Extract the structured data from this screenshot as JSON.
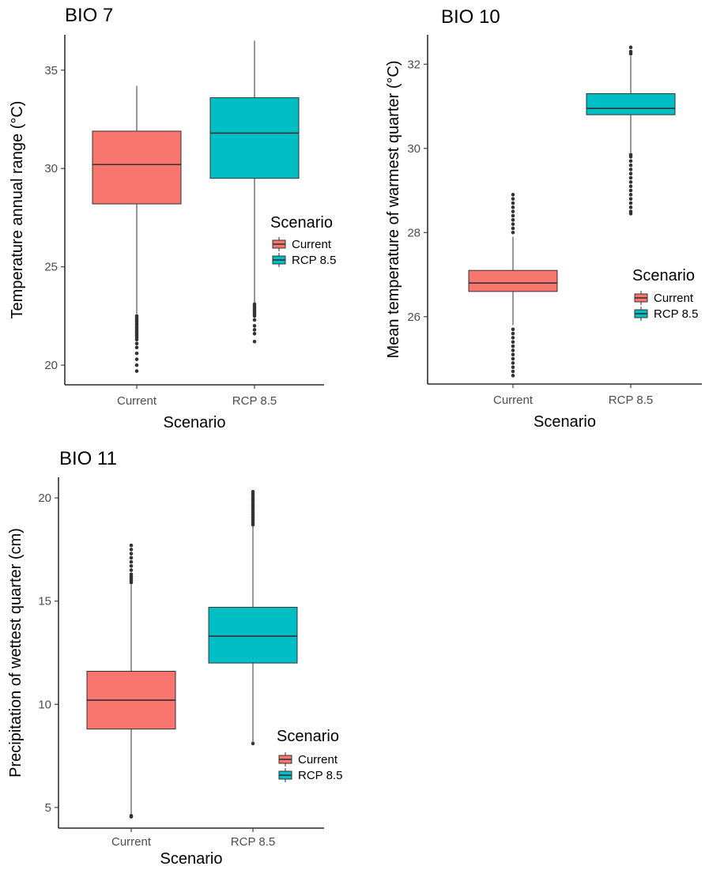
{
  "chart_data": [
    {
      "type": "boxplot",
      "title": "BIO 7",
      "xlabel": "Scenario",
      "ylabel": "Temperature annual range (°C)",
      "ylim": [
        19.0,
        36.8
      ],
      "yticks": [
        "20",
        "25",
        "30",
        "35"
      ],
      "categories": [
        "Current",
        "RCP 8.5"
      ],
      "legend": {
        "title": "Scenario",
        "labels": [
          "Current",
          "RCP 8.5"
        ],
        "position": "right"
      },
      "boxes": [
        {
          "category": "Current",
          "fill": "#F8766D",
          "whisker_low": 22.6,
          "q1": 28.2,
          "median": 30.2,
          "q3": 31.9,
          "whisker_high": 34.2,
          "outliers": [
            22.5,
            22.4,
            22.3,
            22.2,
            22.1,
            22.0,
            21.9,
            21.8,
            21.7,
            21.6,
            21.5,
            21.4,
            21.3,
            21.1,
            20.9,
            20.6,
            20.3,
            20.0,
            19.7
          ]
        },
        {
          "category": "RCP 8.5",
          "fill": "#00BFC4",
          "whisker_low": 23.1,
          "q1": 29.5,
          "median": 31.8,
          "q3": 33.6,
          "whisker_high": 36.5,
          "outliers": [
            23.1,
            23.0,
            22.9,
            22.8,
            22.7,
            22.6,
            22.5,
            22.3,
            22.0,
            21.8,
            21.6,
            21.2
          ]
        }
      ]
    },
    {
      "type": "boxplot",
      "title": "BIO 10",
      "xlabel": "Scenario",
      "ylabel": "Mean temperature of warmest quarter (°C)",
      "ylim": [
        24.4,
        32.7
      ],
      "yticks": [
        "26",
        "28",
        "30",
        "32"
      ],
      "categories": [
        "Current",
        "RCP 8.5"
      ],
      "legend": {
        "title": "Scenario",
        "labels": [
          "Current",
          "RCP 8.5"
        ],
        "position": "right"
      },
      "boxes": [
        {
          "category": "Current",
          "fill": "#F8766D",
          "whisker_low": 25.8,
          "q1": 26.6,
          "median": 26.8,
          "q3": 27.1,
          "whisker_high": 27.9,
          "outliers": [
            28.0,
            28.1,
            28.2,
            28.3,
            28.4,
            28.5,
            28.6,
            28.7,
            28.8,
            28.9,
            25.7,
            25.6,
            25.5,
            25.4,
            25.3,
            25.2,
            25.1,
            25.0,
            24.9,
            24.8,
            24.7,
            24.6
          ]
        },
        {
          "category": "RCP 8.5",
          "fill": "#00BFC4",
          "whisker_low": 29.9,
          "q1": 30.8,
          "median": 30.95,
          "q3": 31.3,
          "whisker_high": 32.2,
          "outliers": [
            32.25,
            32.3,
            32.4,
            29.85,
            29.8,
            29.7,
            29.6,
            29.5,
            29.4,
            29.3,
            29.2,
            29.1,
            29.0,
            28.9,
            28.8,
            28.7,
            28.6,
            28.5,
            28.45
          ]
        }
      ]
    },
    {
      "type": "boxplot",
      "title": "BIO 11",
      "xlabel": "Scenario",
      "ylabel": "Precipitation of wettest quarter (cm)",
      "ylim": [
        4.0,
        21.0
      ],
      "yticks": [
        "5",
        "10",
        "15",
        "20"
      ],
      "categories": [
        "Current",
        "RCP 8.5"
      ],
      "legend": {
        "title": "Scenario",
        "labels": [
          "Current",
          "RCP 8.5"
        ],
        "position": "right"
      },
      "boxes": [
        {
          "category": "Current",
          "fill": "#F8766D",
          "whisker_low": 4.7,
          "q1": 8.8,
          "median": 10.2,
          "q3": 11.6,
          "whisker_high": 15.8,
          "outliers": [
            15.9,
            16.0,
            16.1,
            16.2,
            16.3,
            16.5,
            16.7,
            16.9,
            17.1,
            17.3,
            17.5,
            17.7,
            4.6,
            4.55
          ]
        },
        {
          "category": "RCP 8.5",
          "fill": "#00BFC4",
          "whisker_low": 8.1,
          "q1": 12.0,
          "median": 13.3,
          "q3": 14.7,
          "whisker_high": 18.6,
          "outliers": [
            18.7,
            18.8,
            18.9,
            19.0,
            19.1,
            19.2,
            19.3,
            19.4,
            19.5,
            19.6,
            19.7,
            19.8,
            19.9,
            20.0,
            20.1,
            20.2,
            20.3,
            8.1
          ]
        }
      ]
    }
  ]
}
